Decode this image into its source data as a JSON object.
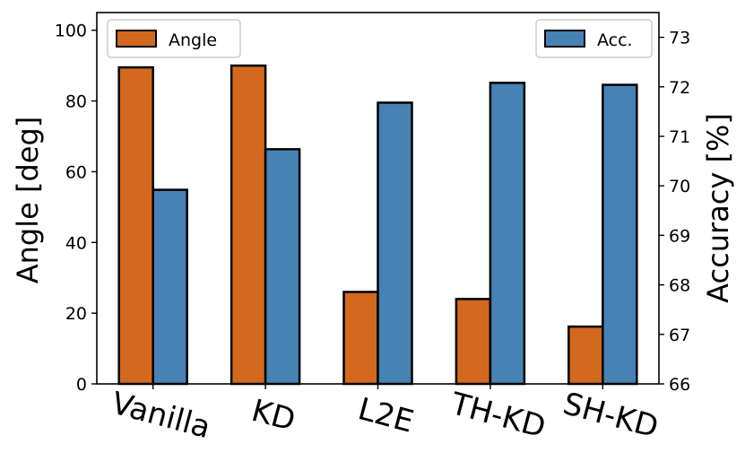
{
  "chart_data": {
    "type": "bar",
    "categories": [
      "Vanilla",
      "KD",
      "L2E",
      "TH-KD",
      "SH-KD"
    ],
    "series": [
      {
        "name": "Angle",
        "axis": "left",
        "color": "#d2691e",
        "values": [
          89.5,
          90.0,
          26.0,
          24.0,
          16.2
        ]
      },
      {
        "name": "Acc.",
        "axis": "right",
        "color": "#4682b4",
        "values": [
          69.92,
          70.74,
          71.68,
          72.08,
          72.04
        ]
      }
    ],
    "ylabel": "Angle [deg]",
    "ylabel_right": "Accuracy [%]",
    "ylim": [
      0,
      105
    ],
    "ylim_right": [
      66,
      73.5
    ],
    "yticks": [
      0,
      20,
      40,
      60,
      80,
      100
    ],
    "yticks_right": [
      66,
      67,
      68,
      69,
      70,
      71,
      72,
      73
    ],
    "legend_left": {
      "label": "Angle",
      "placement": "top-left"
    },
    "legend_right": {
      "label": "Acc.",
      "placement": "top-right"
    }
  }
}
